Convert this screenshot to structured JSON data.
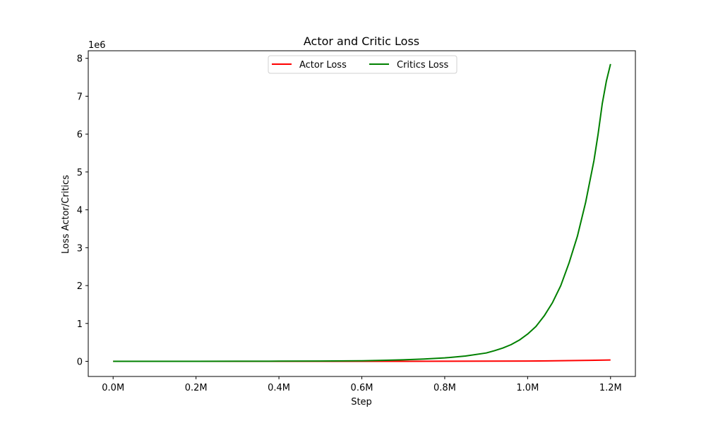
{
  "chart_data": {
    "type": "line",
    "title": "Actor and Critic Loss",
    "xlabel": "Step",
    "ylabel": "Loss Actor/Critics",
    "y_offset_label": "1e6",
    "xlim": [
      -60000,
      1260000
    ],
    "ylim": [
      -400000,
      8200000
    ],
    "x_ticks": [
      0,
      200000,
      400000,
      600000,
      800000,
      1000000,
      1200000
    ],
    "x_tick_labels": [
      "0.0M",
      "0.2M",
      "0.4M",
      "0.6M",
      "0.8M",
      "1.0M",
      "1.2M"
    ],
    "y_ticks": [
      0,
      1000000,
      2000000,
      3000000,
      4000000,
      5000000,
      6000000,
      7000000,
      8000000
    ],
    "y_tick_labels": [
      "0",
      "1",
      "2",
      "3",
      "4",
      "5",
      "6",
      "7",
      "8"
    ],
    "grid": false,
    "legend_position": "top-center",
    "series": [
      {
        "name": "Actor Loss",
        "color": "#ff0000",
        "x": [
          0,
          100000,
          200000,
          300000,
          400000,
          500000,
          600000,
          700000,
          800000,
          900000,
          1000000,
          1050000,
          1100000,
          1150000,
          1200000
        ],
        "y": [
          0,
          0,
          0,
          0,
          0,
          0,
          0,
          500,
          1500,
          4000,
          8000,
          12000,
          18000,
          26000,
          35000
        ]
      },
      {
        "name": "Critics Loss",
        "color": "#008000",
        "x": [
          0,
          100000,
          200000,
          300000,
          400000,
          500000,
          600000,
          650000,
          700000,
          750000,
          800000,
          850000,
          900000,
          920000,
          940000,
          960000,
          980000,
          1000000,
          1020000,
          1040000,
          1060000,
          1080000,
          1100000,
          1120000,
          1140000,
          1160000,
          1170000,
          1180000,
          1190000,
          1200000
        ],
        "y": [
          0,
          0,
          1000,
          2000,
          4000,
          8000,
          15000,
          25000,
          40000,
          60000,
          90000,
          140000,
          220000,
          280000,
          350000,
          440000,
          560000,
          720000,
          920000,
          1200000,
          1550000,
          2000000,
          2600000,
          3300000,
          4200000,
          5300000,
          6000000,
          6800000,
          7400000,
          7850000
        ]
      }
    ]
  }
}
